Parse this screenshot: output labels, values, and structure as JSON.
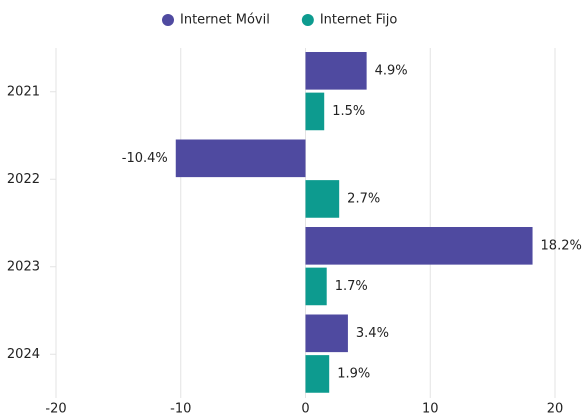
{
  "chart_data": {
    "type": "hbar",
    "categories": [
      "2021",
      "2022",
      "2023",
      "2024"
    ],
    "series": [
      {
        "name": "Internet Móvil",
        "color": "#4f4aa0",
        "values": [
          4.9,
          -10.4,
          18.2,
          3.4
        ],
        "value_labels": [
          "4.9%",
          "-10.4%",
          "18.2%",
          "3.4%"
        ]
      },
      {
        "name": "Internet Fijo",
        "color": "#0d9b8f",
        "values": [
          1.5,
          2.7,
          1.7,
          1.9
        ],
        "value_labels": [
          "1.5%",
          "2.7%",
          "1.7%",
          "1.9%"
        ]
      }
    ],
    "xlim": [
      -20,
      20
    ],
    "xticks": [
      -20,
      -10,
      0,
      10,
      20
    ],
    "grid": true,
    "legend": "top"
  }
}
